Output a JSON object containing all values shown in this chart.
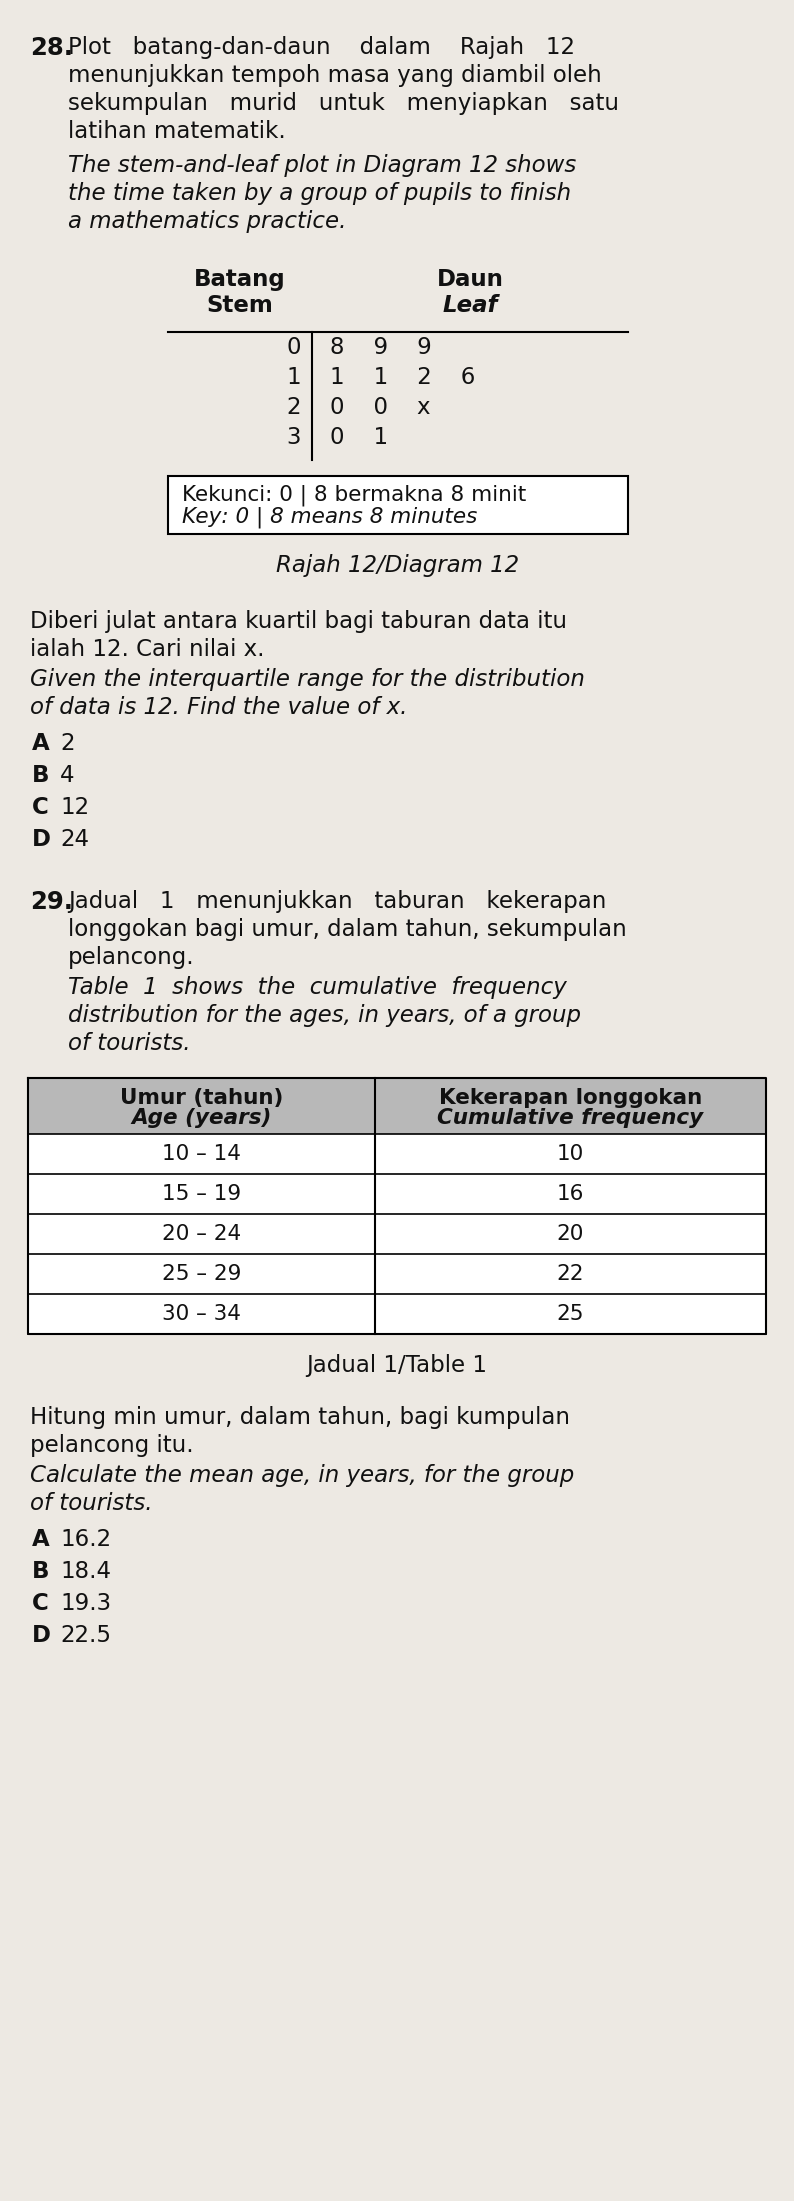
{
  "bg_color": "#ede9e3",
  "text_color": "#111111",
  "q28_number": "28.",
  "q28_malay_line1": "Plot   batang-dan-daun    dalam    Rajah   12",
  "q28_malay_line2": "menunjukkan tempoh masa yang diambil oleh",
  "q28_malay_line3": "sekumpulan   murid   untuk   menyiapkan   satu",
  "q28_malay_line4": "latihan matematik.",
  "q28_eng_line1": "The stem-and-leaf plot in Diagram 12 shows",
  "q28_eng_line2": "the time taken by a group of pupils to finish",
  "q28_eng_line3": "a mathematics practice.",
  "stem_header1": "Batang",
  "stem_header2": "Stem",
  "leaf_header1": "Daun",
  "leaf_header2": "Leaf",
  "stem_data": [
    "0",
    "1",
    "2",
    "3"
  ],
  "leaf_data": [
    "8    9    9",
    "1    1    2    6",
    "0    0    x",
    "0    1"
  ],
  "key_malay": "Kekunci: 0 | 8 bermakna 8 minit",
  "key_english": "Key: 0 | 8 means 8 minutes",
  "diagram_caption": "Rajah 12/Diagram 12",
  "q28_qm_line1": "Diberi julat antara kuartil bagi taburan data itu",
  "q28_qm_line2": "ialah 12. Cari nilai x.",
  "q28_qe_line1": "Given the interquartile range for the distribution",
  "q28_qe_line2": "of data is 12. Find the value of x.",
  "q28_opts": [
    [
      "A",
      "2"
    ],
    [
      "B",
      "4"
    ],
    [
      "C",
      "12"
    ],
    [
      "D",
      "24"
    ]
  ],
  "q29_number": "29.",
  "q29_malay_line1": "Jadual   1   menunjukkan   taburan   kekerapan",
  "q29_malay_line2": "longgokan bagi umur, dalam tahun, sekumpulan",
  "q29_malay_line3": "pelancong.",
  "q29_eng_line1": "Table  1  shows  the  cumulative  frequency",
  "q29_eng_line2": "distribution for the ages, in years, of a group",
  "q29_eng_line3": "of tourists.",
  "table_h1_left": "Umur (tahun)",
  "table_h2_left": "Age (years)",
  "table_h1_right": "Kekerapan longgokan",
  "table_h2_right": "Cumulative frequency",
  "table_rows": [
    [
      "10 – 14",
      "10"
    ],
    [
      "15 – 19",
      "16"
    ],
    [
      "20 – 24",
      "20"
    ],
    [
      "25 – 29",
      "22"
    ],
    [
      "30 – 34",
      "25"
    ]
  ],
  "table_caption": "Jadual 1/Table 1",
  "q29_qm_line1": "Hitung min umur, dalam tahun, bagi kumpulan",
  "q29_qm_line2": "pelancong itu.",
  "q29_qe_line1": "Calculate the mean age, in years, for the group",
  "q29_qe_line2": "of tourists.",
  "q29_opts": [
    [
      "A",
      "16.2"
    ],
    [
      "B",
      "18.4"
    ],
    [
      "C",
      "19.3"
    ],
    [
      "D",
      "22.5"
    ]
  ]
}
